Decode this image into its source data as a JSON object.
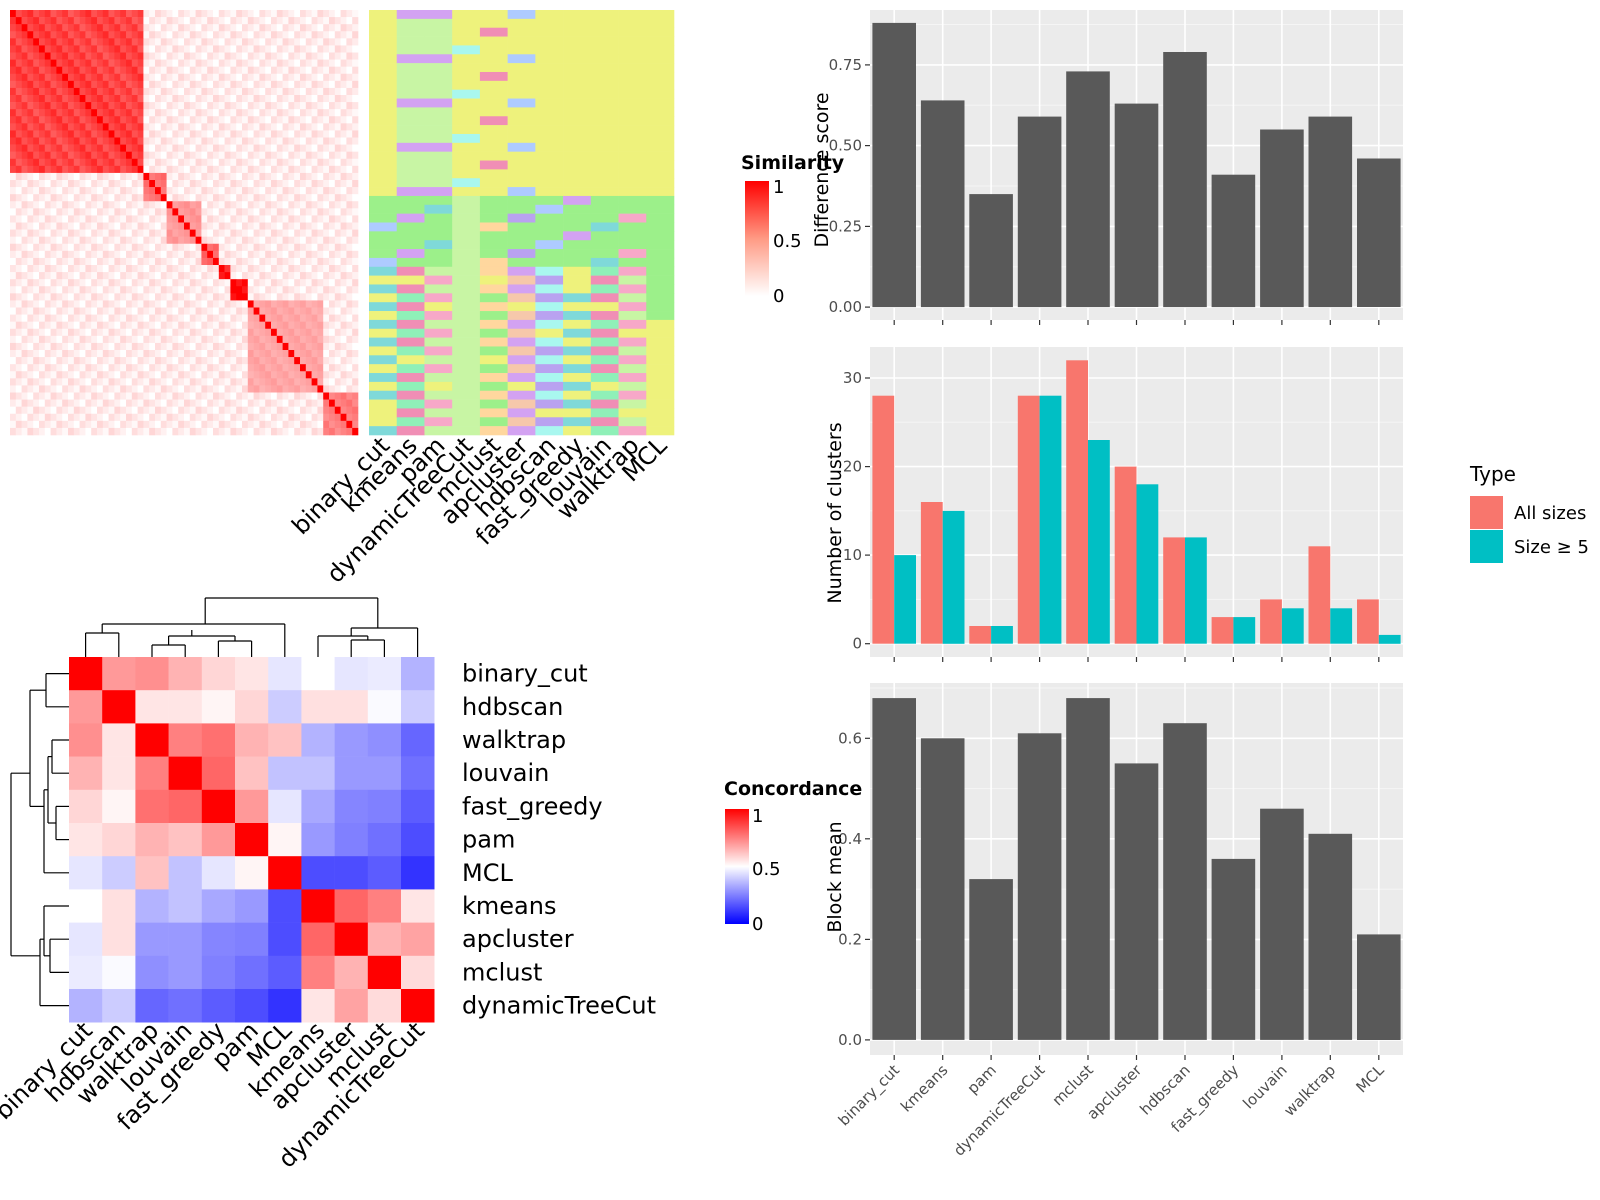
{
  "colors": {
    "red": "#ff0000",
    "white": "#ffffff",
    "blue": "#0000ff",
    "bar_fill": "#595959",
    "panel_bg": "#ebebeb",
    "all_sizes": "#f8766d",
    "size_ge_5": "#00bfc4"
  },
  "chart_data": [
    {
      "type": "heatmap",
      "id": "similarity-heatmap",
      "legend_title": "Similarity",
      "legend_ticks": [
        "1",
        "0.5",
        "0"
      ],
      "columns": [
        "binary_cut",
        "kmeans",
        "pam",
        "dynamicTreeCut",
        "mclust",
        "apcluster",
        "hdbscan",
        "fast_greedy",
        "louvain",
        "walktrap",
        "MCL"
      ],
      "blocks": [
        {
          "size": 0.38,
          "value": 0.75
        },
        {
          "size": 0.06,
          "value": 0.55
        },
        {
          "size": 0.1,
          "value": 0.4
        },
        {
          "size": 0.05,
          "value": 0.6
        },
        {
          "size": 0.04,
          "value": 0.85
        },
        {
          "size": 0.05,
          "value": 0.95
        },
        {
          "size": 0.22,
          "value": 0.35
        },
        {
          "size": 0.1,
          "value": 0.5
        }
      ],
      "off_block_value": 0.08,
      "note_class_colors": [
        "#eef27c",
        "#c8f5a4",
        "#9cf08a",
        "#a9f7ef",
        "#f08eb5",
        "#aecbff",
        "#d3a2f2",
        "#7fd9d9",
        "#f7a8c8",
        "#ffd79e",
        "#b9a2f0",
        "#8ff0b8",
        "#7dbff0",
        "#f6c8ab"
      ]
    },
    {
      "type": "heatmap",
      "id": "concordance-heatmap",
      "legend_title": "Concordance",
      "legend_ticks": [
        "1",
        "0.5",
        "0"
      ],
      "row_labels": [
        "binary_cut",
        "hdbscan",
        "walktrap",
        "louvain",
        "fast_greedy",
        "pam",
        "MCL",
        "kmeans",
        "apcluster",
        "mclust",
        "dynamicTreeCut"
      ],
      "col_labels": [
        "binary_cut",
        "hdbscan",
        "walktrap",
        "louvain",
        "fast_greedy",
        "pam",
        "MCL",
        "kmeans",
        "apcluster",
        "mclust",
        "dynamicTreeCut"
      ],
      "values": [
        [
          1.0,
          0.7,
          0.72,
          0.65,
          0.58,
          0.55,
          0.45,
          0.5,
          0.45,
          0.46,
          0.35
        ],
        [
          0.7,
          1.0,
          0.55,
          0.55,
          0.52,
          0.58,
          0.4,
          0.56,
          0.56,
          0.49,
          0.4
        ],
        [
          0.72,
          0.55,
          1.0,
          0.75,
          0.78,
          0.65,
          0.62,
          0.35,
          0.3,
          0.28,
          0.2
        ],
        [
          0.65,
          0.55,
          0.75,
          1.0,
          0.8,
          0.62,
          0.38,
          0.38,
          0.3,
          0.3,
          0.22
        ],
        [
          0.58,
          0.52,
          0.78,
          0.8,
          1.0,
          0.7,
          0.45,
          0.33,
          0.26,
          0.25,
          0.18
        ],
        [
          0.55,
          0.58,
          0.65,
          0.62,
          0.7,
          1.0,
          0.52,
          0.3,
          0.25,
          0.22,
          0.15
        ],
        [
          0.45,
          0.4,
          0.62,
          0.38,
          0.45,
          0.52,
          1.0,
          0.15,
          0.15,
          0.18,
          0.1
        ],
        [
          0.5,
          0.56,
          0.35,
          0.38,
          0.33,
          0.3,
          0.15,
          1.0,
          0.8,
          0.75,
          0.55
        ],
        [
          0.45,
          0.56,
          0.3,
          0.3,
          0.26,
          0.25,
          0.15,
          0.8,
          1.0,
          0.65,
          0.68
        ],
        [
          0.46,
          0.49,
          0.28,
          0.3,
          0.25,
          0.22,
          0.18,
          0.75,
          0.65,
          1.0,
          0.57
        ],
        [
          0.35,
          0.4,
          0.2,
          0.22,
          0.18,
          0.15,
          0.1,
          0.55,
          0.68,
          0.57,
          1.0
        ]
      ]
    },
    {
      "type": "bar",
      "id": "difference-score",
      "categories": [
        "binary_cut",
        "kmeans",
        "pam",
        "dynamicTreeCut",
        "mclust",
        "apcluster",
        "hdbscan",
        "fast_greedy",
        "louvain",
        "walktrap",
        "MCL"
      ],
      "values": [
        0.88,
        0.64,
        0.35,
        0.59,
        0.73,
        0.63,
        0.79,
        0.41,
        0.55,
        0.59,
        0.46
      ],
      "ylabel": "Difference score",
      "ylim": [
        -0.04,
        0.92
      ],
      "yticks": [
        0,
        0.25,
        0.5,
        0.75
      ],
      "ytick_labels": [
        "0.00",
        "0.25",
        "0.50",
        "0.75"
      ]
    },
    {
      "type": "bar",
      "id": "number-of-clusters",
      "categories": [
        "binary_cut",
        "kmeans",
        "pam",
        "dynamicTreeCut",
        "mclust",
        "apcluster",
        "hdbscan",
        "fast_greedy",
        "louvain",
        "walktrap",
        "MCL"
      ],
      "series": [
        {
          "name": "All sizes",
          "values": [
            28,
            16,
            2,
            28,
            32,
            20,
            12,
            3,
            5,
            11,
            5
          ]
        },
        {
          "name": "Size ≥ 5",
          "values": [
            10,
            15,
            2,
            28,
            23,
            18,
            12,
            3,
            4,
            4,
            1
          ]
        }
      ],
      "ylabel": "Number of clusters",
      "ylim": [
        -1.5,
        33.5
      ],
      "yticks": [
        0,
        10,
        20,
        30
      ],
      "ytick_labels": [
        "0",
        "10",
        "20",
        "30"
      ],
      "legend_title": "Type"
    },
    {
      "type": "bar",
      "id": "block-mean",
      "categories": [
        "binary_cut",
        "kmeans",
        "pam",
        "dynamicTreeCut",
        "mclust",
        "apcluster",
        "hdbscan",
        "fast_greedy",
        "louvain",
        "walktrap",
        "MCL"
      ],
      "values": [
        0.68,
        0.6,
        0.32,
        0.61,
        0.68,
        0.55,
        0.63,
        0.36,
        0.46,
        0.41,
        0.21
      ],
      "ylabel": "Block mean",
      "ylim": [
        -0.03,
        0.71
      ],
      "yticks": [
        0,
        0.2,
        0.4,
        0.6
      ],
      "ytick_labels": [
        "0.0",
        "0.2",
        "0.4",
        "0.6"
      ]
    }
  ]
}
